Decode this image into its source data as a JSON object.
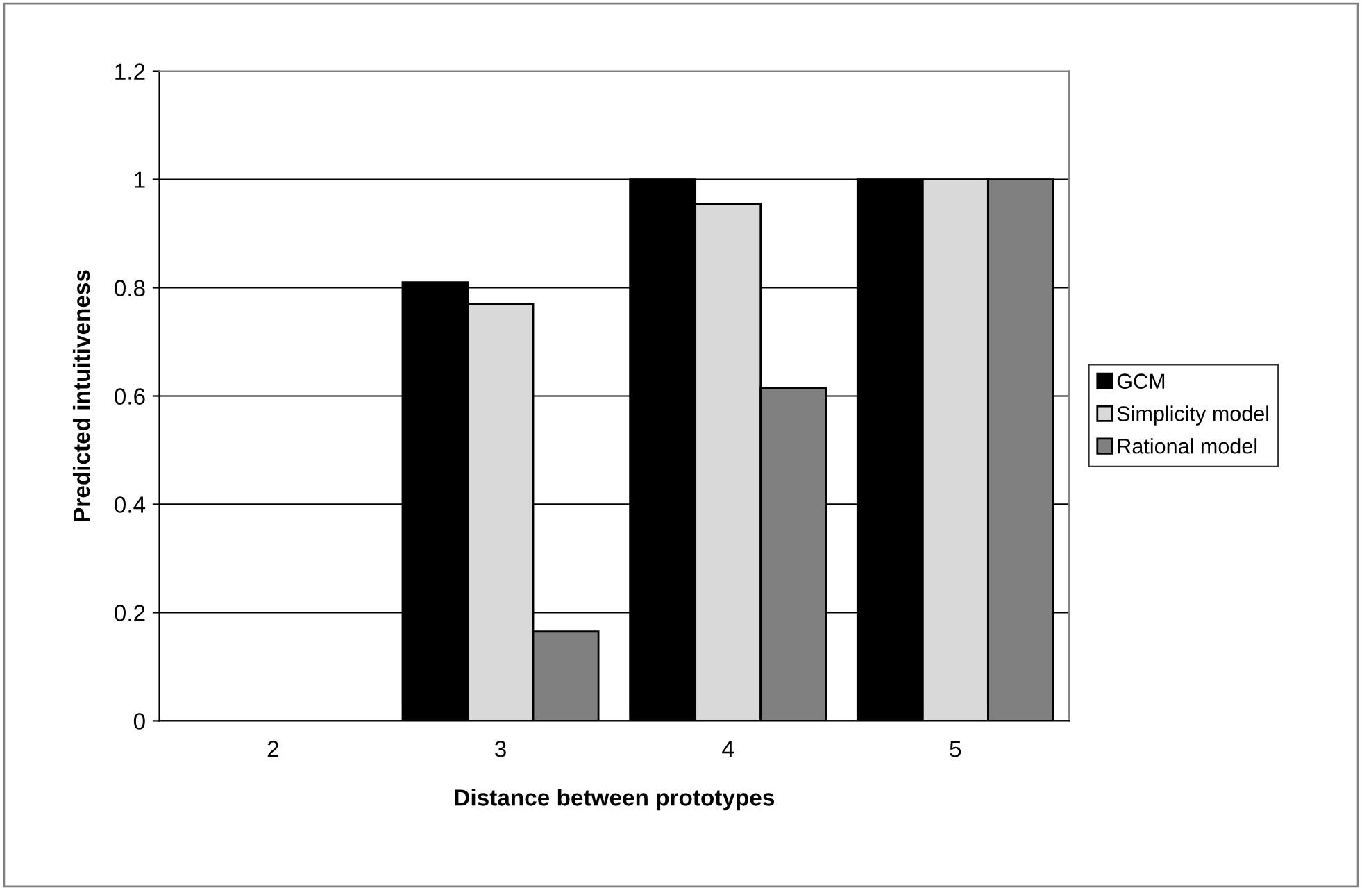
{
  "chart_data": {
    "type": "bar",
    "xlabel": "Distance between prototypes",
    "ylabel": "Predicted intuitiveness",
    "categories": [
      "2",
      "3",
      "4",
      "5"
    ],
    "series": [
      {
        "name": "GCM",
        "color": "#000000",
        "values": [
          null,
          0.81,
          1,
          1
        ]
      },
      {
        "name": "Simplicity model",
        "color": "#d9d9d9",
        "values": [
          null,
          0.77,
          0.955,
          1
        ]
      },
      {
        "name": "Rational model",
        "color": "#808080",
        "values": [
          null,
          0.165,
          0.615,
          1
        ]
      }
    ],
    "ylim": [
      0,
      1.2
    ],
    "yticks": [
      0,
      0.2,
      0.4,
      0.6,
      0.8,
      1,
      1.2
    ],
    "grid": "y",
    "legend": "right"
  }
}
